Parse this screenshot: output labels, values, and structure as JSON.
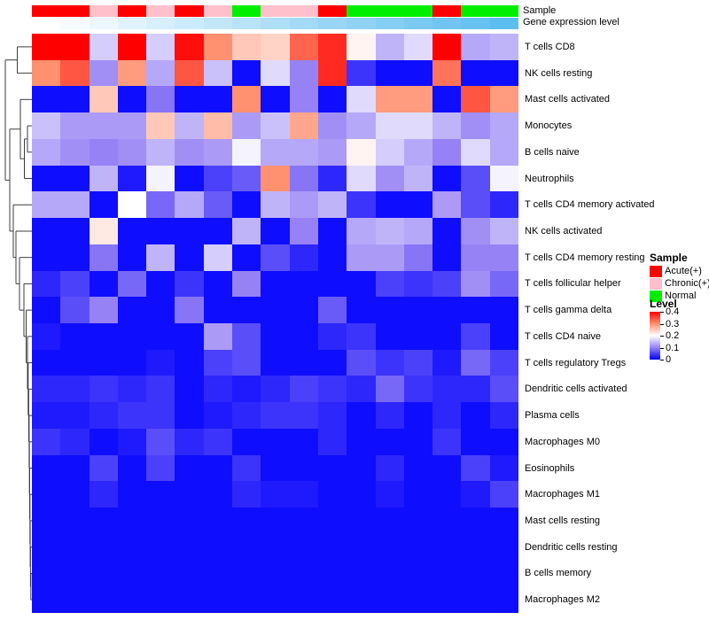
{
  "annotation": {
    "sample_label": "Sample",
    "gene_label": "Gene expression level"
  },
  "legend": {
    "sample": {
      "title": "Sample",
      "items": [
        {
          "label": "Acute(+)",
          "color": "#FF0000"
        },
        {
          "label": "Chronic(+)",
          "color": "#FFC0CB"
        },
        {
          "label": "Normal",
          "color": "#00EE00"
        }
      ]
    },
    "level": {
      "title": "Level",
      "ticks": [
        "0.4",
        "0.3",
        "0.2",
        "0.1",
        "0"
      ]
    }
  },
  "chart_data": {
    "type": "heatmap",
    "title": "",
    "value_domain": [
      0,
      0.4
    ],
    "colorscale": [
      [
        0.0,
        "#0000FF"
      ],
      [
        0.1,
        "#9682F5"
      ],
      [
        0.2,
        "#FFFFFF"
      ],
      [
        0.3,
        "#FF9070"
      ],
      [
        0.4,
        "#FF0000"
      ]
    ],
    "rows": [
      "T cells CD8",
      "NK cells resting",
      "Mast cells activated",
      "Monocytes",
      "B cells naive",
      "Neutrophils",
      "T cells CD4 memory activated",
      "NK cells activated",
      "T cells CD4 memory resting",
      "T cells follicular helper",
      "T cells gamma delta",
      "T cells CD4 naive",
      "T cells regulatory  Tregs",
      "Dendritic cells activated",
      "Plasma cells",
      "Macrophages M0",
      "Eosinophils",
      "Macrophages M1",
      "Mast cells resting",
      "Dendritic cells resting",
      "B cells memory",
      "Macrophages M2"
    ],
    "n_columns": 17,
    "column_annotations": {
      "sample": [
        "Acute(+)",
        "Acute(+)",
        "Chronic(+)",
        "Acute(+)",
        "Chronic(+)",
        "Acute(+)",
        "Chronic(+)",
        "Normal",
        "Chronic(+)",
        "Chronic(+)",
        "Acute(+)",
        "Normal",
        "Normal",
        "Normal",
        "Acute(+)",
        "Normal",
        "Normal"
      ],
      "gene_expression_level": [
        0,
        0.0625,
        0.125,
        0.1875,
        0.25,
        0.3125,
        0.375,
        0.4375,
        0.5,
        0.5625,
        0.625,
        0.6875,
        0.75,
        0.8125,
        0.875,
        0.9375,
        1
      ],
      "gene_gradient_start": "#FFFFFF",
      "gene_gradient_end": "#5CBEEF"
    },
    "values": [
      [
        0.4,
        0.4,
        0.16,
        0.4,
        0.16,
        0.39,
        0.3,
        0.25,
        0.24,
        0.33,
        0.37,
        0.21,
        0.14,
        0.17,
        0.4,
        0.13,
        0.14
      ],
      [
        0.3,
        0.34,
        0.11,
        0.29,
        0.13,
        0.34,
        0.15,
        0.01,
        0.17,
        0.1,
        0.37,
        0.04,
        0.01,
        0.01,
        0.32,
        0.01,
        0.01
      ],
      [
        0.01,
        0.01,
        0.25,
        0.01,
        0.09,
        0.01,
        0.01,
        0.3,
        0.01,
        0.1,
        0.01,
        0.17,
        0.29,
        0.29,
        0.01,
        0.34,
        0.29
      ],
      [
        0.15,
        0.12,
        0.12,
        0.12,
        0.25,
        0.14,
        0.26,
        0.12,
        0.15,
        0.28,
        0.11,
        0.13,
        0.17,
        0.17,
        0.14,
        0.11,
        0.13
      ],
      [
        0.13,
        0.11,
        0.1,
        0.11,
        0.14,
        0.11,
        0.12,
        0.19,
        0.13,
        0.13,
        0.12,
        0.21,
        0.16,
        0.13,
        0.1,
        0.17,
        0.13
      ],
      [
        0.01,
        0.01,
        0.14,
        0.02,
        0.19,
        0.01,
        0.05,
        0.07,
        0.3,
        0.09,
        0.03,
        0.17,
        0.11,
        0.14,
        0.01,
        0.06,
        0.19
      ],
      [
        0.13,
        0.13,
        0.01,
        0.2,
        0.08,
        0.13,
        0.07,
        0.01,
        0.14,
        0.12,
        0.14,
        0.04,
        0.01,
        0.01,
        0.12,
        0.06,
        0.03
      ],
      [
        0.01,
        0.01,
        0.22,
        0.01,
        0.01,
        0.01,
        0.01,
        0.14,
        0.01,
        0.1,
        0.01,
        0.13,
        0.14,
        0.13,
        0.01,
        0.11,
        0.14
      ],
      [
        0.01,
        0.01,
        0.09,
        0.01,
        0.14,
        0.01,
        0.16,
        0.01,
        0.06,
        0.03,
        0.01,
        0.12,
        0.12,
        0.09,
        0.01,
        0.1,
        0.1
      ],
      [
        0.03,
        0.05,
        0.01,
        0.08,
        0.01,
        0.04,
        0.01,
        0.1,
        0.01,
        0.01,
        0.01,
        0.01,
        0.05,
        0.04,
        0.05,
        0.11,
        0.08
      ],
      [
        0.01,
        0.06,
        0.1,
        0.01,
        0.01,
        0.09,
        0.01,
        0.01,
        0.01,
        0.01,
        0.07,
        0.01,
        0.01,
        0.01,
        0.01,
        0.01,
        0.01
      ],
      [
        0.02,
        0.01,
        0.01,
        0.01,
        0.01,
        0.01,
        0.12,
        0.06,
        0.01,
        0.01,
        0.03,
        0.04,
        0.01,
        0.01,
        0.01,
        0.05,
        0.01
      ],
      [
        0.01,
        0.01,
        0.01,
        0.01,
        0.02,
        0.01,
        0.05,
        0.06,
        0.01,
        0.01,
        0.01,
        0.06,
        0.04,
        0.05,
        0.02,
        0.08,
        0.05
      ],
      [
        0.03,
        0.03,
        0.04,
        0.03,
        0.04,
        0.01,
        0.03,
        0.02,
        0.03,
        0.05,
        0.04,
        0.03,
        0.08,
        0.04,
        0.03,
        0.03,
        0.06
      ],
      [
        0.02,
        0.02,
        0.03,
        0.04,
        0.04,
        0.01,
        0.02,
        0.03,
        0.04,
        0.04,
        0.03,
        0.01,
        0.03,
        0.01,
        0.03,
        0.01,
        0.03
      ],
      [
        0.04,
        0.03,
        0.01,
        0.02,
        0.06,
        0.03,
        0.04,
        0.01,
        0.01,
        0.01,
        0.03,
        0.01,
        0.01,
        0.01,
        0.04,
        0.01,
        0.01
      ],
      [
        0.01,
        0.01,
        0.05,
        0.01,
        0.05,
        0.01,
        0.01,
        0.04,
        0.01,
        0.01,
        0.01,
        0.01,
        0.03,
        0.01,
        0.01,
        0.05,
        0.02
      ],
      [
        0.01,
        0.01,
        0.03,
        0.01,
        0.01,
        0.01,
        0.01,
        0.03,
        0.02,
        0.02,
        0.01,
        0.01,
        0.02,
        0.01,
        0.01,
        0.02,
        0.05
      ],
      [
        0.01,
        0.01,
        0.01,
        0.01,
        0.01,
        0.01,
        0.01,
        0.01,
        0.01,
        0.01,
        0.01,
        0.01,
        0.01,
        0.01,
        0.01,
        0.01,
        0.01
      ],
      [
        0.01,
        0.01,
        0.01,
        0.01,
        0.01,
        0.01,
        0.01,
        0.01,
        0.01,
        0.01,
        0.01,
        0.01,
        0.01,
        0.01,
        0.01,
        0.01,
        0.01
      ],
      [
        0.01,
        0.01,
        0.01,
        0.01,
        0.01,
        0.01,
        0.01,
        0.01,
        0.01,
        0.01,
        0.01,
        0.01,
        0.01,
        0.01,
        0.01,
        0.01,
        0.01
      ],
      [
        0.01,
        0.01,
        0.01,
        0.01,
        0.01,
        0.01,
        0.01,
        0.01,
        0.01,
        0.01,
        0.01,
        0.01,
        0.01,
        0.01,
        0.01,
        0.01,
        0.01
      ]
    ],
    "row_dendrogram": {
      "merges": [
        {
          "id": "N1",
          "a": "L4",
          "b": "L5",
          "x": 31
        },
        {
          "id": "N2",
          "a": "N1",
          "b": "L6",
          "x": 27.5
        },
        {
          "id": "N3",
          "a": "L3",
          "b": "N2",
          "x": 23
        },
        {
          "id": "N4",
          "a": "L21",
          "b": "L22",
          "x": 34.8
        },
        {
          "id": "N5",
          "a": "L20",
          "b": "N4",
          "x": 34.4
        },
        {
          "id": "N6",
          "a": "L19",
          "b": "N5",
          "x": 34.1
        },
        {
          "id": "N7",
          "a": "L18",
          "b": "N6",
          "x": 33.8
        },
        {
          "id": "N8",
          "a": "L17",
          "b": "N7",
          "x": 33.5
        },
        {
          "id": "N9",
          "a": "L16",
          "b": "N8",
          "x": 33.2
        },
        {
          "id": "N10",
          "a": "L15",
          "b": "N9",
          "x": 32.9
        },
        {
          "id": "N11",
          "a": "L14",
          "b": "N10",
          "x": 32.4
        },
        {
          "id": "N12",
          "a": "L13",
          "b": "N11",
          "x": 31.8
        },
        {
          "id": "N13",
          "a": "L12",
          "b": "N12",
          "x": 31.0
        },
        {
          "id": "N14",
          "a": "L11",
          "b": "N13",
          "x": 29.5
        },
        {
          "id": "N15",
          "a": "L10",
          "b": "N14",
          "x": 27.0
        },
        {
          "id": "N16",
          "a": "L9",
          "b": "N15",
          "x": 22.0
        },
        {
          "id": "N17",
          "a": "L8",
          "b": "N16",
          "x": 18.0
        },
        {
          "id": "N18",
          "a": "L7",
          "b": "N17",
          "x": 15.0
        },
        {
          "id": "N19",
          "a": "N3",
          "b": "N18",
          "x": 11.0
        },
        {
          "id": "N20",
          "a": "L1",
          "b": "L2",
          "x": 19.5
        },
        {
          "id": "N21",
          "a": "N20",
          "b": "N19",
          "x": 6.0
        }
      ]
    }
  }
}
